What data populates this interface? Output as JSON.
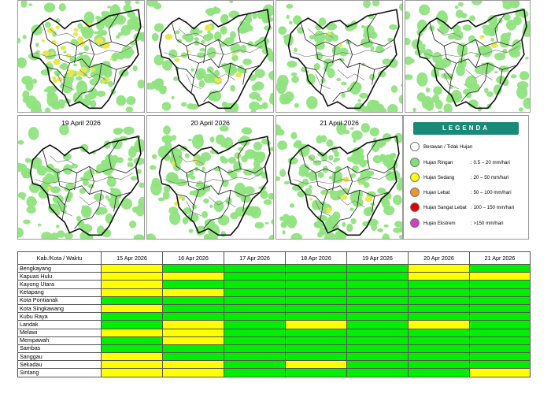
{
  "maps": [
    {
      "title": "",
      "density": 0.72,
      "yellow": 0.16
    },
    {
      "title": "",
      "density": 0.6,
      "yellow": 0.04
    },
    {
      "title": "",
      "density": 0.42,
      "yellow": 0.01
    },
    {
      "title": "",
      "density": 0.62,
      "yellow": 0.01
    },
    {
      "title": "19 April 2026",
      "density": 0.6,
      "yellow": 0.01
    },
    {
      "title": "20 April 2026",
      "density": 0.64,
      "yellow": 0.03
    },
    {
      "title": "21 April 2026",
      "density": 0.7,
      "yellow": 0.04
    }
  ],
  "legend": {
    "title": "LEGENDA",
    "items": [
      {
        "label": "Berawan / Tidak Hujan",
        "range": "",
        "color": "#ffffff"
      },
      {
        "label": "Hujan Ringan",
        "range": ": 0.5 – 20 mm/hari",
        "color": "#7ee07a"
      },
      {
        "label": "Hujan Sedang",
        "range": ": 20 – 50 mm/hari",
        "color": "#ffff00"
      },
      {
        "label": "Hujan Lebat",
        "range": ": 50 – 100 mm/hari",
        "color": "#f0952a"
      },
      {
        "label": "Hujan Sangat Lebat",
        "range": ": 100 – 150 mm/hari",
        "color": "#e00000"
      },
      {
        "label": "Hujan Ekstrem",
        "range": ": >150 mm/hari",
        "color": "#d040c0"
      }
    ]
  },
  "table": {
    "header_first": "Kab./Kota / Waktu",
    "dates": [
      "15 Apr 2026",
      "16 Apr 2026",
      "17 Apr 2026",
      "18 Apr 2026",
      "19 Apr 2026",
      "20 Apr 2026",
      "21 Apr 2026"
    ],
    "rows": [
      {
        "name": "Bengkayang",
        "cells": [
          "S",
          "R",
          "R",
          "R",
          "R",
          "S",
          "R"
        ]
      },
      {
        "name": "Kapuas Hulu",
        "cells": [
          "S",
          "S",
          "R",
          "R",
          "R",
          "S",
          "S"
        ]
      },
      {
        "name": "Kayong Utara",
        "cells": [
          "S",
          "R",
          "R",
          "R",
          "R",
          "R",
          "R"
        ]
      },
      {
        "name": "Ketapang",
        "cells": [
          "S",
          "S",
          "R",
          "R",
          "R",
          "R",
          "R"
        ]
      },
      {
        "name": "Kota Pontianak",
        "cells": [
          "R",
          "R",
          "R",
          "R",
          "R",
          "R",
          "R"
        ]
      },
      {
        "name": "Kota Singkawang",
        "cells": [
          "S",
          "R",
          "R",
          "R",
          "R",
          "R",
          "R"
        ]
      },
      {
        "name": "Kubu Raya",
        "cells": [
          "R",
          "R",
          "R",
          "R",
          "R",
          "R",
          "R"
        ]
      },
      {
        "name": "Landak",
        "cells": [
          "R",
          "S",
          "R",
          "S",
          "R",
          "S",
          "R"
        ]
      },
      {
        "name": "Melawi",
        "cells": [
          "S",
          "S",
          "R",
          "R",
          "R",
          "R",
          "R"
        ]
      },
      {
        "name": "Mempawah",
        "cells": [
          "R",
          "S",
          "R",
          "R",
          "R",
          "R",
          "R"
        ]
      },
      {
        "name": "Sambas",
        "cells": [
          "R",
          "R",
          "R",
          "R",
          "R",
          "R",
          "R"
        ]
      },
      {
        "name": "Sanggau",
        "cells": [
          "S",
          "R",
          "R",
          "R",
          "R",
          "R",
          "R"
        ]
      },
      {
        "name": "Sekadau",
        "cells": [
          "S",
          "S",
          "R",
          "S",
          "R",
          "R",
          "R"
        ]
      },
      {
        "name": "Sintang",
        "cells": [
          "S",
          "S",
          "R",
          "R",
          "R",
          "R",
          "S"
        ]
      }
    ],
    "colors": {
      "R": "#00ee00",
      "S": "#ffff00"
    }
  }
}
